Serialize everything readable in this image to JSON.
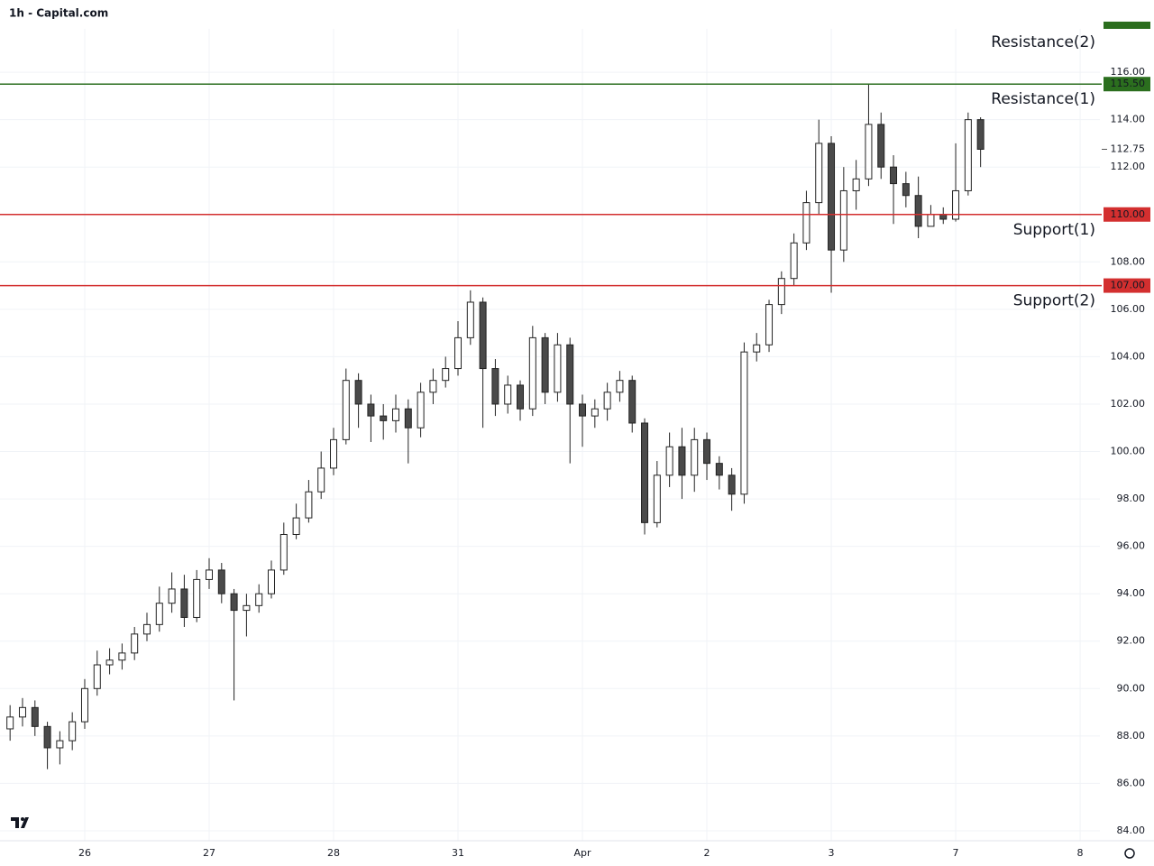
{
  "chart_data": {
    "type": "candlestick",
    "title": "1h - Capital.com",
    "x": [
      -0.6,
      -0.5,
      -0.4,
      -0.3,
      -0.2,
      -0.1,
      0.0,
      0.1,
      0.2,
      0.3,
      0.4,
      0.5,
      0.6,
      0.7,
      0.8,
      0.9,
      1.0,
      1.1,
      1.2,
      1.3,
      1.4,
      1.5,
      1.6,
      1.7,
      1.8,
      1.9,
      2.0,
      2.1,
      2.2,
      2.3,
      2.4,
      2.5,
      2.6,
      2.7,
      2.8,
      2.9,
      3.0,
      3.1,
      3.2,
      3.3,
      3.4,
      3.5,
      3.6,
      3.7,
      3.8,
      3.9,
      4.0,
      4.1,
      4.2,
      4.3,
      4.4,
      4.5,
      4.6,
      4.7,
      4.8,
      4.9,
      5.0,
      5.1,
      5.2,
      5.3,
      5.4,
      5.5,
      5.6,
      5.7,
      5.8,
      5.9,
      6.0,
      6.1,
      6.2,
      6.3,
      6.4,
      6.5,
      6.6,
      6.7,
      6.8,
      6.9,
      7.0,
      7.1,
      7.2
    ],
    "open": [
      88.3,
      88.8,
      89.2,
      88.4,
      87.5,
      87.8,
      88.6,
      90.0,
      91.0,
      91.2,
      91.5,
      92.3,
      92.7,
      93.6,
      94.2,
      93.0,
      94.6,
      95.0,
      94.0,
      93.3,
      93.5,
      94.0,
      95.0,
      96.5,
      97.2,
      98.3,
      99.3,
      100.5,
      103.0,
      102.0,
      101.5,
      101.3,
      101.8,
      101.0,
      102.5,
      103.0,
      103.5,
      104.8,
      106.3,
      103.5,
      102.0,
      102.8,
      101.8,
      104.8,
      102.5,
      104.5,
      102.0,
      101.5,
      101.8,
      102.5,
      103.0,
      101.2,
      97.0,
      99.0,
      100.2,
      99.0,
      100.5,
      99.5,
      99.0,
      98.2,
      104.2,
      104.5,
      106.2,
      107.3,
      108.8,
      110.5,
      113.0,
      108.5,
      111.0,
      111.5,
      113.8,
      112.0,
      111.3,
      110.8,
      109.5,
      110.0,
      109.8,
      111.0,
      114.0
    ],
    "high": [
      89.3,
      89.6,
      89.5,
      88.6,
      88.2,
      89.0,
      90.4,
      91.6,
      91.7,
      91.9,
      92.6,
      93.2,
      94.3,
      94.9,
      94.8,
      95.0,
      95.5,
      95.3,
      94.2,
      94.0,
      94.4,
      95.4,
      97.0,
      97.8,
      98.8,
      100.0,
      101.0,
      103.5,
      103.3,
      102.4,
      102.0,
      102.4,
      102.2,
      102.9,
      103.5,
      104.0,
      105.5,
      106.8,
      106.5,
      103.9,
      103.2,
      103.0,
      105.3,
      105.0,
      105.0,
      104.8,
      102.4,
      102.2,
      102.9,
      103.4,
      103.2,
      101.4,
      99.6,
      100.8,
      101.0,
      101.0,
      100.8,
      99.8,
      99.3,
      104.6,
      105.0,
      106.4,
      107.6,
      109.2,
      111.0,
      114.0,
      113.3,
      112.0,
      112.3,
      115.5,
      114.3,
      112.5,
      111.8,
      111.6,
      110.4,
      110.3,
      113.0,
      114.3,
      114.1
    ],
    "low": [
      87.8,
      88.4,
      88.0,
      86.6,
      86.8,
      87.4,
      88.3,
      89.7,
      90.6,
      90.8,
      91.2,
      92.0,
      92.4,
      93.2,
      92.6,
      92.8,
      94.2,
      93.6,
      89.5,
      92.2,
      93.2,
      93.8,
      94.8,
      96.3,
      97.0,
      98.0,
      99.0,
      100.3,
      101.0,
      100.4,
      100.5,
      100.8,
      99.5,
      100.6,
      102.0,
      102.7,
      103.2,
      104.5,
      101.0,
      101.5,
      101.6,
      101.3,
      101.5,
      102.0,
      102.1,
      99.5,
      100.2,
      101.0,
      101.3,
      102.1,
      100.8,
      96.5,
      96.8,
      98.5,
      98.0,
      98.3,
      98.8,
      98.4,
      97.5,
      97.8,
      103.8,
      104.2,
      105.8,
      107.0,
      108.5,
      110.0,
      106.7,
      108.0,
      110.2,
      111.2,
      111.5,
      109.6,
      110.3,
      109.0,
      109.5,
      109.6,
      109.7,
      110.8,
      112.0
    ],
    "close": [
      88.8,
      89.2,
      88.4,
      87.5,
      87.8,
      88.6,
      90.0,
      91.0,
      91.2,
      91.5,
      92.3,
      92.7,
      93.6,
      94.2,
      93.0,
      94.6,
      95.0,
      94.0,
      93.3,
      93.5,
      94.0,
      95.0,
      96.5,
      97.2,
      98.3,
      99.3,
      100.5,
      103.0,
      102.0,
      101.5,
      101.3,
      101.8,
      101.0,
      102.5,
      103.0,
      103.5,
      104.8,
      106.3,
      103.5,
      102.0,
      102.8,
      101.8,
      104.8,
      102.5,
      104.5,
      102.0,
      101.5,
      101.8,
      102.5,
      103.0,
      101.2,
      97.0,
      99.0,
      100.2,
      99.0,
      100.5,
      99.5,
      99.0,
      98.2,
      104.2,
      104.5,
      106.2,
      107.3,
      108.8,
      110.5,
      113.0,
      108.5,
      111.0,
      111.5,
      113.8,
      112.0,
      111.3,
      110.8,
      109.5,
      110.0,
      109.8,
      111.0,
      114.0,
      112.75
    ],
    "up_color": "#ffffff",
    "down_color": "#4a4a4a",
    "xlim": [
      -0.681,
      8.159
    ],
    "xticks": [
      {
        "value": 0,
        "label": "26"
      },
      {
        "value": 1,
        "label": "27"
      },
      {
        "value": 2,
        "label": "28"
      },
      {
        "value": 3,
        "label": "31"
      },
      {
        "value": 4,
        "label": "Apr"
      },
      {
        "value": 5,
        "label": "2"
      },
      {
        "value": 6,
        "label": "3"
      },
      {
        "value": 7,
        "label": "7"
      },
      {
        "value": 8,
        "label": "8"
      }
    ],
    "ylim": [
      83.58,
      117.83
    ],
    "yticks": [
      {
        "value": 84,
        "label": "84.00"
      },
      {
        "value": 86,
        "label": "86.00"
      },
      {
        "value": 88,
        "label": "88.00"
      },
      {
        "value": 90,
        "label": "90.00"
      },
      {
        "value": 92,
        "label": "92.00"
      },
      {
        "value": 94,
        "label": "94.00"
      },
      {
        "value": 96,
        "label": "96.00"
      },
      {
        "value": 98,
        "label": "98.00"
      },
      {
        "value": 100,
        "label": "100.00"
      },
      {
        "value": 102,
        "label": "102.00"
      },
      {
        "value": 104,
        "label": "104.00"
      },
      {
        "value": 106,
        "label": "106.00"
      },
      {
        "value": 108,
        "label": "108.00"
      },
      {
        "value": 110,
        "label": "110.00"
      },
      {
        "value": 112,
        "label": "112.00"
      },
      {
        "value": 114,
        "label": "114.00"
      },
      {
        "value": 116,
        "label": "116.00"
      }
    ],
    "grid": true,
    "levels": [
      {
        "name": "Resistance(2)",
        "value": 117.9,
        "color": "#2b6e1e"
      },
      {
        "name": "Resistance(1)",
        "value": 115.5,
        "value_label": "115.50",
        "color": "#2b6e1e"
      },
      {
        "name": "Support(1)",
        "value": 110,
        "value_label": "110.00",
        "color": "#d32f2f"
      },
      {
        "name": "Support(2)",
        "value": 107,
        "value_label": "107.00",
        "color": "#d32f2f"
      }
    ],
    "last_price": {
      "value": 112.75,
      "label": "112.75"
    }
  }
}
